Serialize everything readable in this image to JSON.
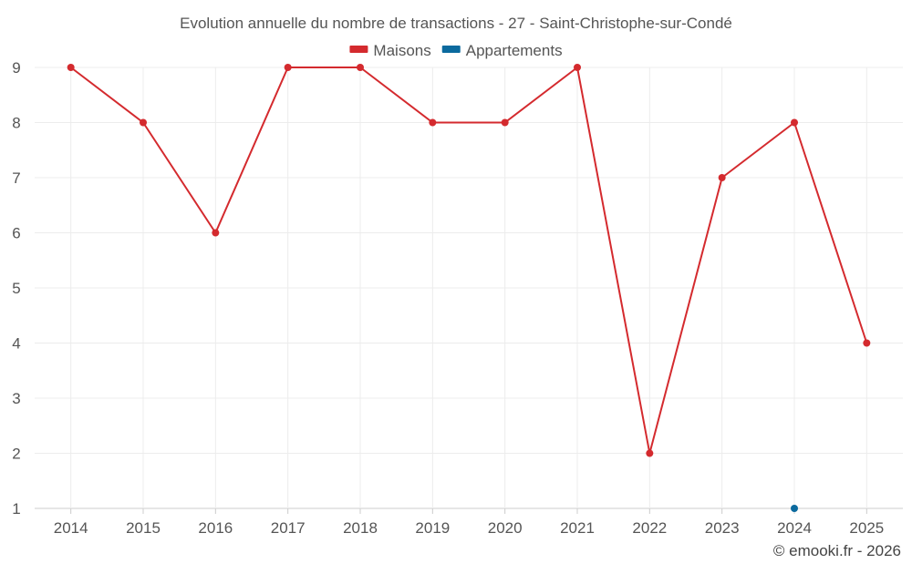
{
  "chart_data": {
    "type": "line",
    "title": "Evolution annuelle du nombre de transactions - 27 - Saint-Christophe-sur-Condé",
    "categories": [
      "2014",
      "2015",
      "2016",
      "2017",
      "2018",
      "2019",
      "2020",
      "2021",
      "2022",
      "2023",
      "2024",
      "2025"
    ],
    "ylim": [
      1,
      9
    ],
    "yticks": [
      1,
      2,
      3,
      4,
      5,
      6,
      7,
      8,
      9
    ],
    "grid": true,
    "legend_position": "top-center",
    "series": [
      {
        "name": "Maisons",
        "color": "#d42a2e",
        "values": [
          9,
          8,
          6,
          9,
          9,
          8,
          8,
          9,
          2,
          7,
          8,
          4
        ]
      },
      {
        "name": "Appartements",
        "color": "#0b6a9e",
        "values": [
          null,
          null,
          null,
          null,
          null,
          null,
          null,
          null,
          null,
          null,
          1,
          null
        ]
      }
    ],
    "credit": "© emooki.fr - 2026"
  }
}
